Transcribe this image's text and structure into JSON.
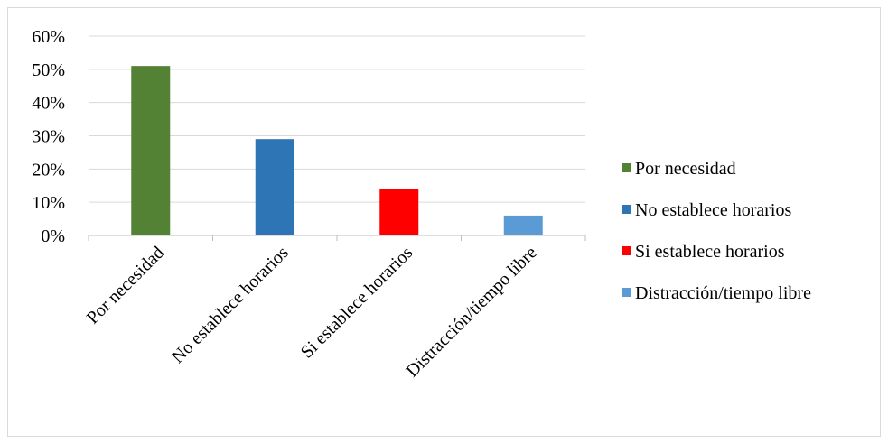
{
  "chart_data": {
    "type": "bar",
    "categories": [
      "Por necesidad",
      "No establece horarios",
      "Si establece horarios",
      "Distracción/tiempo libre"
    ],
    "values": [
      51,
      29,
      14,
      6
    ],
    "colors": [
      "#548235",
      "#2e75b6",
      "#ff0000",
      "#5b9bd5"
    ],
    "ylim": [
      0,
      60
    ],
    "yticks": [
      0,
      10,
      20,
      30,
      40,
      50,
      60
    ],
    "ytick_labels": [
      "0%",
      "10%",
      "20%",
      "30%",
      "40%",
      "50%",
      "60%"
    ],
    "grid": true,
    "legend_position": "right",
    "legend": [
      "Por necesidad",
      "No establece horarios",
      "Si establece horarios",
      "Distracción/tiempo libre"
    ]
  }
}
